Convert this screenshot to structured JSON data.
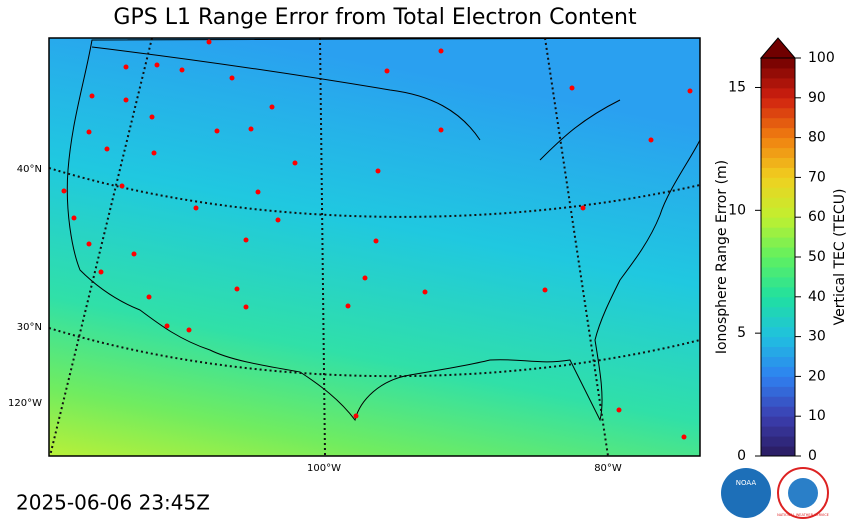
{
  "header": {
    "title": "GPS L1 Range Error from Total Electron Content",
    "timestamp": "2025-06-06 23:45Z"
  },
  "map": {
    "lat_labels": [
      "40°N",
      "30°N",
      "120°W"
    ],
    "lon_labels": [
      "100°W",
      "80°W"
    ]
  },
  "colorbar": {
    "label": "Vertical TEC (TECU)",
    "lim": [
      0,
      100
    ],
    "ticks": [
      0,
      10,
      20,
      30,
      40,
      50,
      60,
      70,
      80,
      90,
      100
    ],
    "colors": [
      "#2a1a5e",
      "#3b3fb0",
      "#2f80f0",
      "#20c0e0",
      "#20e0a0",
      "#60f060",
      "#c0f030",
      "#f0d020",
      "#f08010",
      "#d02010",
      "#700000"
    ],
    "error_label": "Ionosphere Range Error (m)",
    "error_lim": [
      0,
      16.2
    ],
    "error_ticks": [
      0,
      5,
      10,
      15
    ]
  },
  "logos": {
    "noaa": "NOAA",
    "nws": "NATIONAL WEATHER SERVICE"
  }
}
